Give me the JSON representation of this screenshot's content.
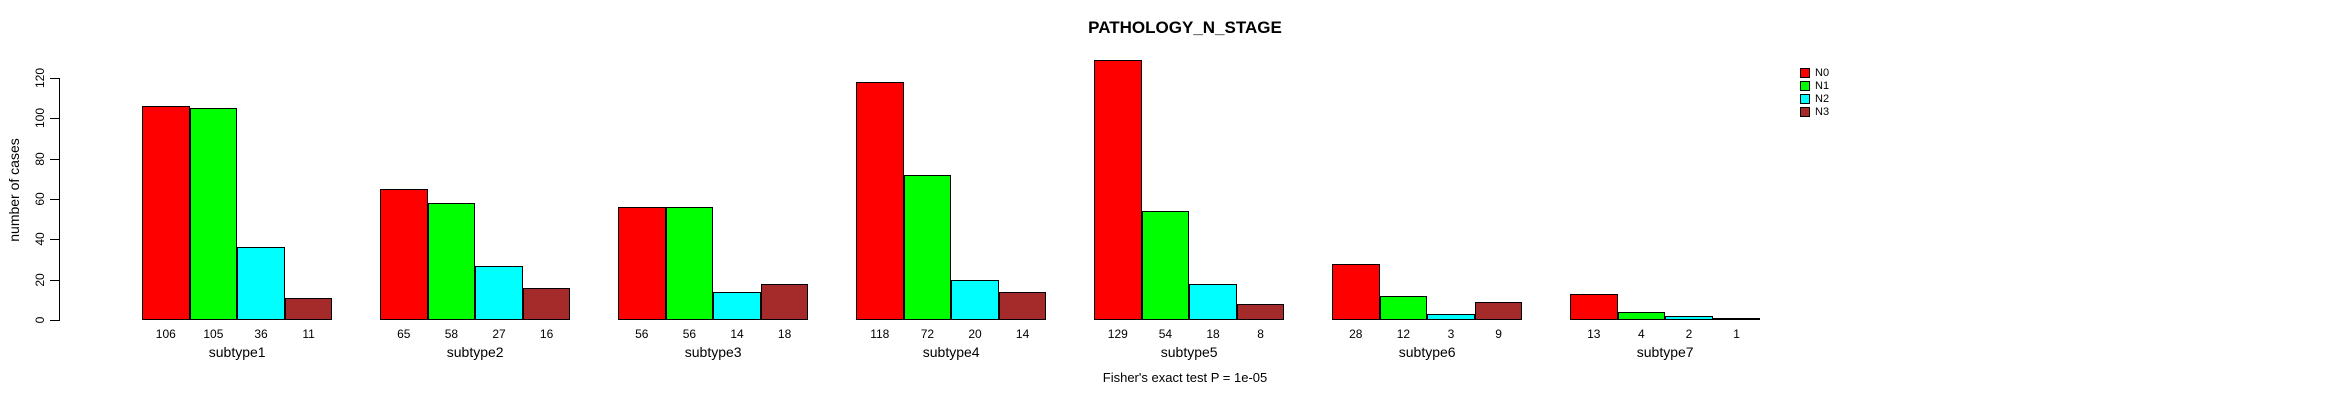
{
  "chart_data": {
    "type": "bar",
    "grouped": true,
    "title": "PATHOLOGY_N_STAGE",
    "xlabel": "",
    "ylabel": "number of cases",
    "ylim": [
      0,
      120
    ],
    "yticks": [
      0,
      20,
      40,
      60,
      80,
      100,
      120
    ],
    "grid": false,
    "legend_position": "right-outside-top",
    "bar_value_labels_shown": true,
    "annotation": "Fisher's exact test P = 1e-05",
    "categories": [
      "subtype1",
      "subtype2",
      "subtype3",
      "subtype4",
      "subtype5",
      "subtype6",
      "subtype7"
    ],
    "series": [
      {
        "name": "N0",
        "color": "#ff0000",
        "values": [
          106,
          65,
          56,
          118,
          129,
          28,
          13
        ]
      },
      {
        "name": "N1",
        "color": "#00ff00",
        "values": [
          105,
          58,
          56,
          72,
          54,
          12,
          4
        ]
      },
      {
        "name": "N2",
        "color": "#00ffff",
        "values": [
          36,
          27,
          14,
          20,
          18,
          3,
          2
        ]
      },
      {
        "name": "N3",
        "color": "#a52a2a",
        "values": [
          11,
          16,
          18,
          14,
          8,
          9,
          1
        ]
      }
    ],
    "colors": {
      "axis": "#000000",
      "text": "#000000",
      "background": "#ffffff"
    }
  }
}
